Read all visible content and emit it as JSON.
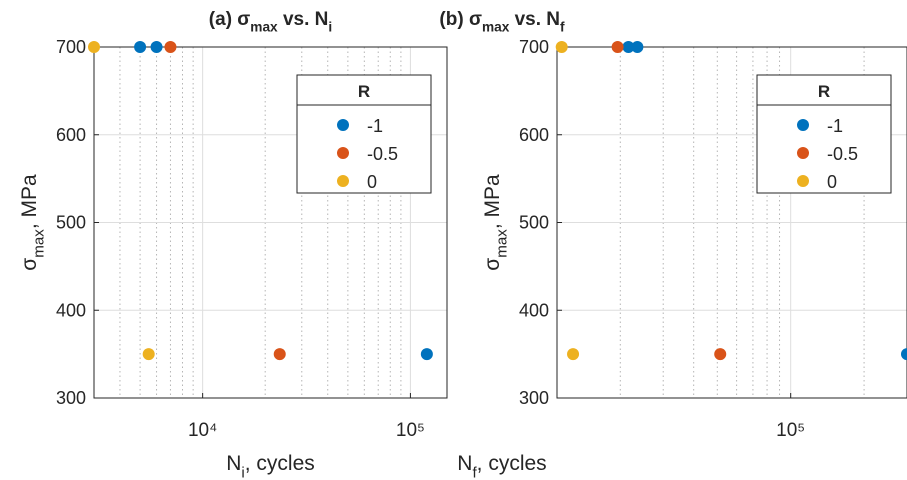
{
  "chart_data": [
    {
      "type": "scatter",
      "title": [
        "(a) σ",
        "max",
        " vs. N",
        "i"
      ],
      "xlabel": [
        "N",
        "i",
        ", cycles"
      ],
      "ylabel": [
        "σ",
        "max",
        ", MPa"
      ],
      "xscale": "log",
      "xlim": [
        3000,
        150000
      ],
      "xticks": [
        {
          "value": 10000,
          "label": "10⁴"
        },
        {
          "value": 100000,
          "label": "10⁵"
        }
      ],
      "xminorticks": [
        4000,
        5000,
        6000,
        7000,
        8000,
        9000,
        20000,
        30000,
        40000,
        50000,
        60000,
        70000,
        80000,
        90000
      ],
      "ylim": [
        300,
        700
      ],
      "yticks": [
        300,
        400,
        500,
        600,
        700
      ],
      "grid": true,
      "legend": {
        "title": "R",
        "location": "northeast"
      },
      "series": [
        {
          "name": "-1",
          "color": "#0072BD",
          "x": [
            5000,
            6000,
            120000
          ],
          "y": [
            700,
            700,
            350
          ]
        },
        {
          "name": "-0.5",
          "color": "#D95319",
          "x": [
            7000,
            23500
          ],
          "y": [
            700,
            350
          ]
        },
        {
          "name": "0",
          "color": "#EDB120",
          "x": [
            3000,
            5500
          ],
          "y": [
            700,
            350
          ]
        }
      ]
    },
    {
      "type": "scatter",
      "title": [
        "(b) σ",
        "max",
        " vs. N",
        "f"
      ],
      "xlabel": [
        "N",
        "f",
        ", cycles"
      ],
      "ylabel": [
        "σ",
        "max",
        ", MPa"
      ],
      "xscale": "log",
      "xlim": [
        11000,
        300000
      ],
      "xticks": [
        {
          "value": 100000,
          "label": "10⁵"
        }
      ],
      "xminorticks": [
        20000,
        30000,
        40000,
        50000,
        60000,
        70000,
        80000,
        90000,
        200000
      ],
      "ylim": [
        300,
        700
      ],
      "yticks": [
        300,
        400,
        500,
        600,
        700
      ],
      "grid": true,
      "legend": {
        "title": "R",
        "location": "northeast"
      },
      "series": [
        {
          "name": "-1",
          "color": "#0072BD",
          "x": [
            21600,
            23500,
            300000
          ],
          "y": [
            700,
            700,
            350
          ]
        },
        {
          "name": "-0.5",
          "color": "#D95319",
          "x": [
            19500,
            51400
          ],
          "y": [
            700,
            350
          ]
        },
        {
          "name": "0",
          "color": "#EDB120",
          "x": [
            11500,
            12800
          ],
          "y": [
            700,
            350
          ]
        }
      ]
    }
  ]
}
